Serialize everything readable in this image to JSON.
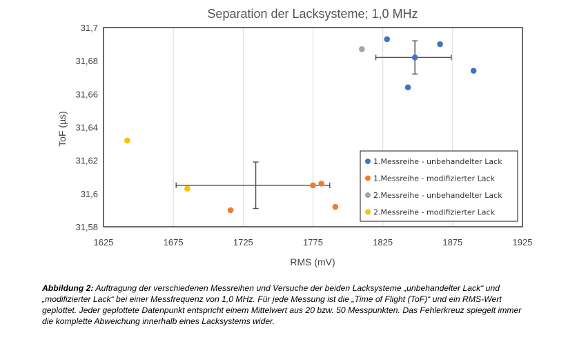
{
  "chart_data": {
    "type": "scatter",
    "title": "Separation der Lacksysteme; 1,0 MHz",
    "xlabel": "RMS (mV)",
    "ylabel": "ToF (µs)",
    "xlim": [
      1625,
      1925
    ],
    "ylim": [
      31.58,
      31.7
    ],
    "xticks": [
      "1625",
      "1675",
      "1725",
      "1775",
      "1825",
      "1875",
      "1925"
    ],
    "yticks": [
      "31,58",
      "31,6",
      "31,62",
      "31,64",
      "31,66",
      "31,68",
      "31,7"
    ],
    "grid": "vertical",
    "legend_position": "bottom-right",
    "series": [
      {
        "name": "1.Messreihe - unbehandelter Lack",
        "color": "#4472C4",
        "points": [
          [
            1828,
            31.693
          ],
          [
            1866,
            31.69
          ],
          [
            1843,
            31.664
          ],
          [
            1890,
            31.674
          ],
          [
            1848,
            31.682
          ]
        ]
      },
      {
        "name": "1.Messreihe - modifizierter Lack",
        "color": "#ED7D31",
        "points": [
          [
            1716,
            31.59
          ],
          [
            1775,
            31.605
          ],
          [
            1781,
            31.606
          ],
          [
            1791,
            31.592
          ]
        ]
      },
      {
        "name": "2.Messreihe - unbehandelter Lack",
        "color": "#A5A5A5",
        "points": [
          [
            1810,
            31.687
          ]
        ]
      },
      {
        "name": "2.Messreihe - modifizierter Lack",
        "color": "#FFC000",
        "points": [
          [
            1642,
            31.632
          ],
          [
            1685,
            31.603
          ]
        ]
      }
    ],
    "error_crosses": [
      {
        "center": [
          1848,
          31.682
        ],
        "x_range": [
          1820,
          1874
        ],
        "y_range": [
          31.672,
          31.692
        ]
      },
      {
        "center": [
          1734,
          31.605
        ],
        "x_range": [
          1677,
          1787
        ],
        "y_range": [
          31.591,
          31.619
        ]
      }
    ]
  },
  "caption": {
    "label": "Abbildung 2:",
    "text": "Auftragung der verschiedenen Messreihen und Versuche der beiden Lacksysteme „unbehandelter Lack“ und „modifizierter Lack“ bei einer Messfrequenz von 1,0 MHz. Für jede Messung ist die „Time of Flight (ToF)“ und ein RMS-Wert geplottet. Jeder geplottete Datenpunkt entspricht einem Mittelwert aus 20 bzw. 50 Messpunkten. Das Fehlerkreuz spiegelt immer die komplette Abweichung innerhalb eines Lacksystems wider."
  }
}
